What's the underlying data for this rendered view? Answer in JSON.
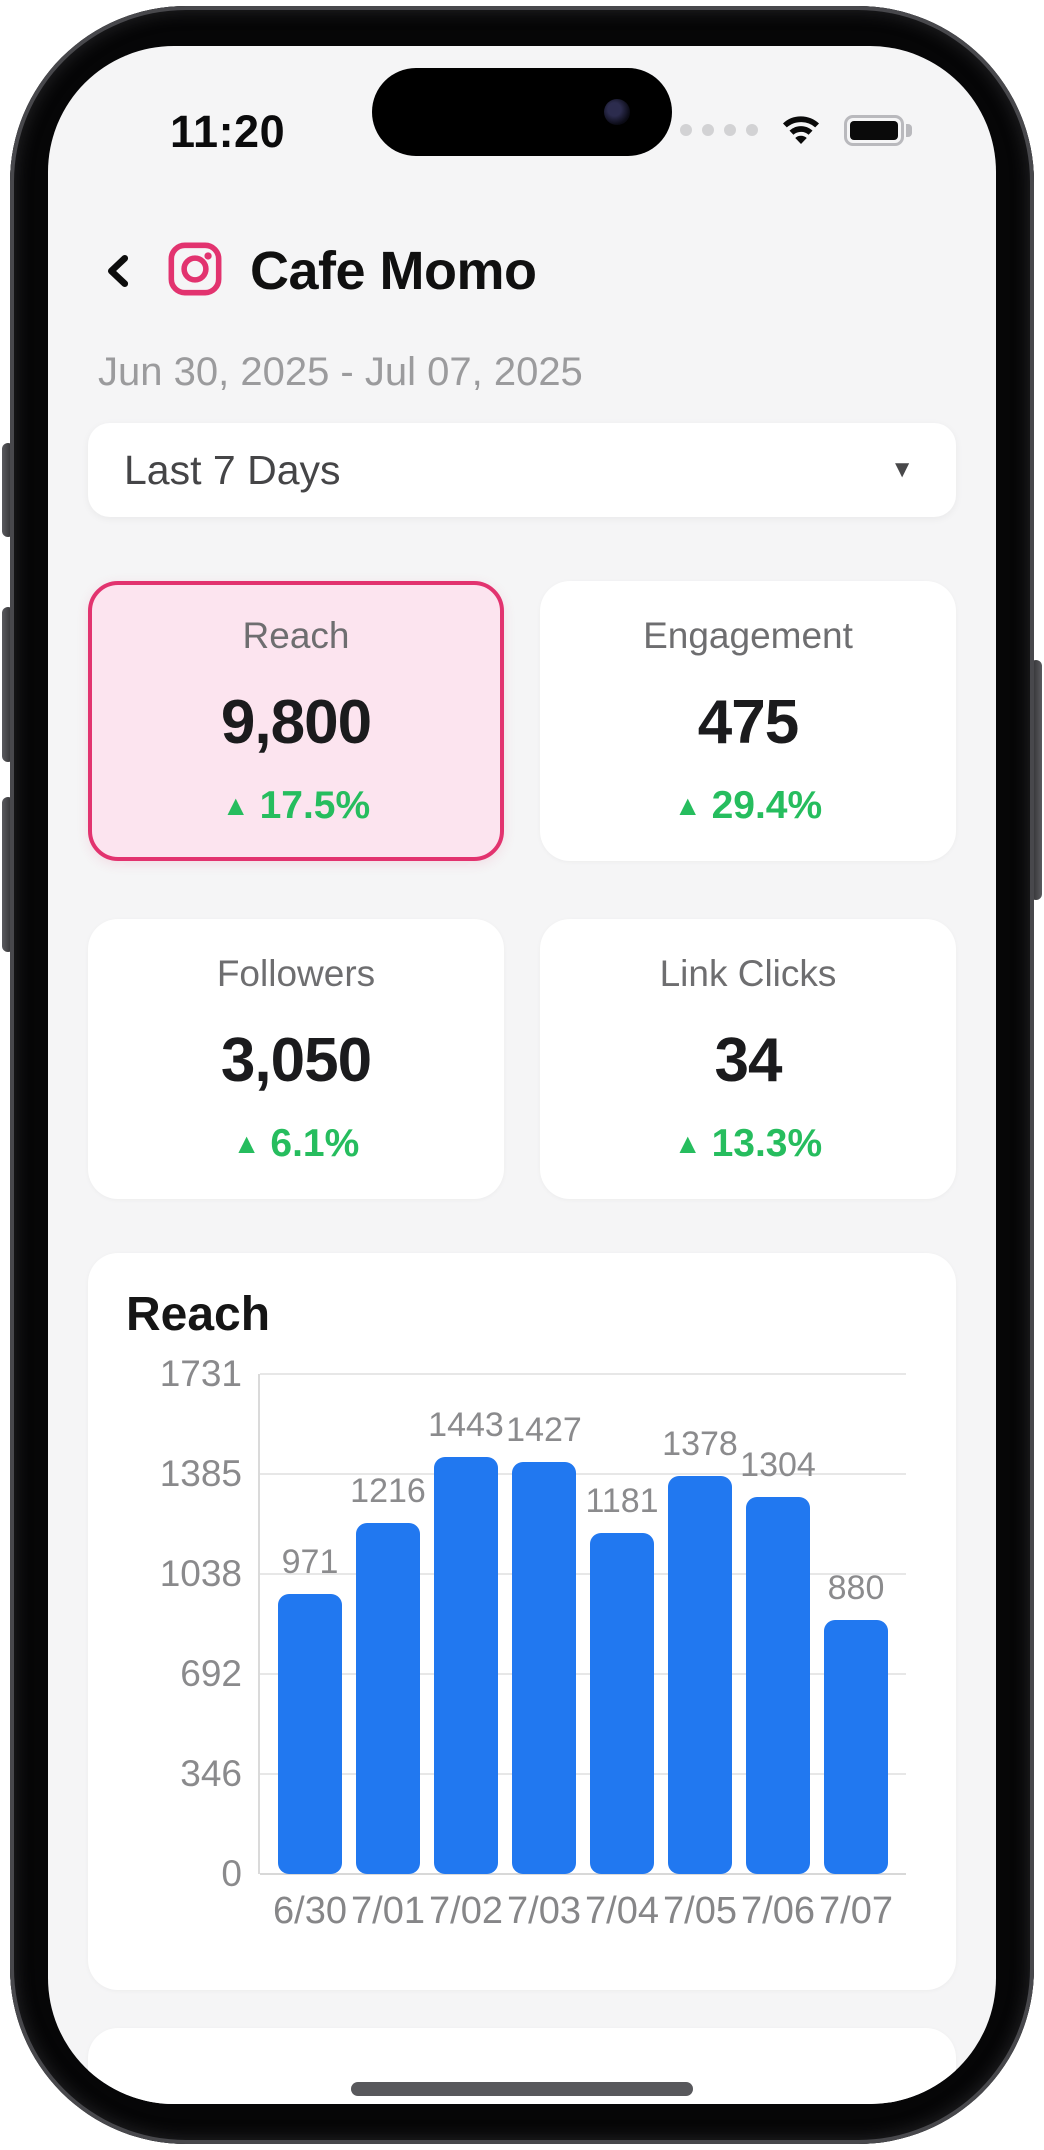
{
  "status_bar": {
    "time": "11:20",
    "cellular_icon": "signal-dots",
    "wifi_icon": "wifi",
    "battery_icon": "battery-full"
  },
  "header": {
    "title": "Cafe Momo"
  },
  "date_range": "Jun 30, 2025 - Jul 07, 2025",
  "period_selector": {
    "value": "Last 7 Days"
  },
  "icons": {
    "up_arrow": "▲",
    "dropdown_caret": "▼"
  },
  "metrics": [
    {
      "label": "Reach",
      "value": "9,800",
      "delta": "17.5%",
      "direction": "up",
      "selected": true
    },
    {
      "label": "Engagement",
      "value": "475",
      "delta": "29.4%",
      "direction": "up",
      "selected": false
    },
    {
      "label": "Followers",
      "value": "3,050",
      "delta": "6.1%",
      "direction": "up",
      "selected": false
    },
    {
      "label": "Link Clicks",
      "value": "34",
      "delta": "13.3%",
      "direction": "up",
      "selected": false
    }
  ],
  "chart_data": {
    "type": "bar",
    "title": "Reach",
    "categories": [
      "6/30",
      "7/01",
      "7/02",
      "7/03",
      "7/04",
      "7/05",
      "7/06",
      "7/07"
    ],
    "values": [
      971,
      1216,
      1443,
      1427,
      1181,
      1378,
      1304,
      880
    ],
    "y_ticks": [
      0,
      346,
      692,
      1038,
      1385,
      1731
    ],
    "ylim": [
      0,
      1731
    ],
    "grid": true,
    "legend": "none",
    "bar_color": "#2178f0"
  },
  "colors": {
    "accent_pink": "#e2336f",
    "accent_pink_bg": "#fce4ef",
    "positive_green": "#26bd5e",
    "bar_blue": "#2178f0"
  }
}
